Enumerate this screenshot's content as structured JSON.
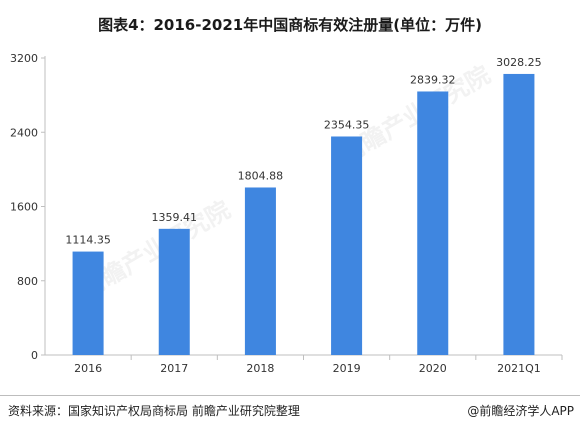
{
  "title": "图表4：2016-2021年中国商标有效注册量(单位：万件)",
  "footer": {
    "source": "资料来源：国家知识产权局商标局 前瞻产业研究院整理",
    "brand": "@前瞻经济学人APP"
  },
  "watermark": "前瞻产业研究院",
  "colors": {
    "bar": "#3f86e0",
    "axis": "#bfbfbf",
    "text": "#333333"
  },
  "chart_data": {
    "type": "bar",
    "categories": [
      "2016",
      "2017",
      "2018",
      "2019",
      "2020",
      "2021Q1"
    ],
    "values": [
      1114.35,
      1359.41,
      1804.88,
      2354.35,
      2839.32,
      3028.25
    ],
    "data_labels": [
      "1114.35",
      "1359.41",
      "1804.88",
      "2354.35",
      "2839.32",
      "3028.25"
    ],
    "yticks": [
      0,
      800,
      1600,
      2400,
      3200
    ],
    "ylim": [
      0,
      3200
    ],
    "grid": false,
    "legend": "none",
    "xlabel": "",
    "ylabel": ""
  }
}
